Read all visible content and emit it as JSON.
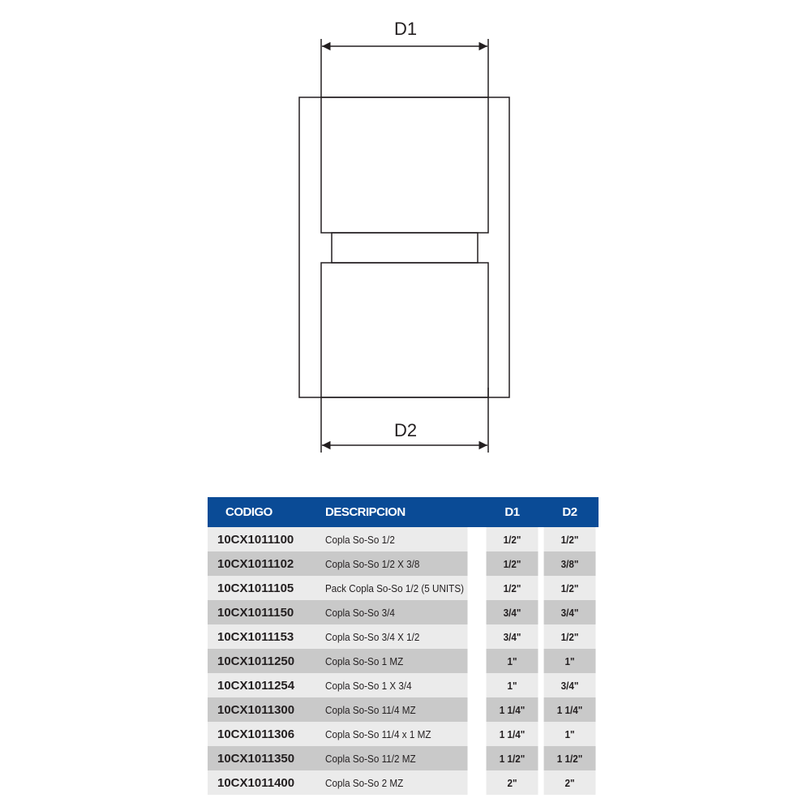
{
  "diagram": {
    "label_top": "D1",
    "label_bottom": "D2"
  },
  "table": {
    "header_color": "#0a4b96",
    "headers": [
      "CODIGO",
      "DESCRIPCION",
      "D1",
      "D2"
    ],
    "rows": [
      {
        "code": "10CX1011100",
        "desc": "Copla So-So 1/2",
        "d1": "1/2\"",
        "d2": "1/2\""
      },
      {
        "code": "10CX1011102",
        "desc": "Copla So-So 1/2 X 3/8",
        "d1": "1/2\"",
        "d2": "3/8\""
      },
      {
        "code": "10CX1011105",
        "desc": "Pack Copla So-So 1/2 (5 UNITS)",
        "d1": "1/2\"",
        "d2": "1/2\""
      },
      {
        "code": "10CX1011150",
        "desc": "Copla So-So 3/4",
        "d1": "3/4\"",
        "d2": "3/4\""
      },
      {
        "code": "10CX1011153",
        "desc": "Copla So-So 3/4 X 1/2",
        "d1": "3/4\"",
        "d2": "1/2\""
      },
      {
        "code": "10CX1011250",
        "desc": "Copla So-So 1 MZ",
        "d1": "1\"",
        "d2": "1\""
      },
      {
        "code": "10CX1011254",
        "desc": "Copla So-So 1 X 3/4",
        "d1": "1\"",
        "d2": "3/4\""
      },
      {
        "code": "10CX1011300",
        "desc": "Copla So-So 11/4 MZ",
        "d1": "1 1/4\"",
        "d2": "1 1/4\""
      },
      {
        "code": "10CX1011306",
        "desc": "Copla So-So 11/4 x 1 MZ",
        "d1": "1 1/4\"",
        "d2": "1\""
      },
      {
        "code": "10CX1011350",
        "desc": "Copla So-So 11/2 MZ",
        "d1": "1 1/2\"",
        "d2": "1 1/2\""
      },
      {
        "code": "10CX1011400",
        "desc": "Copla So-So 2 MZ",
        "d1": "2\"",
        "d2": "2\""
      }
    ]
  }
}
